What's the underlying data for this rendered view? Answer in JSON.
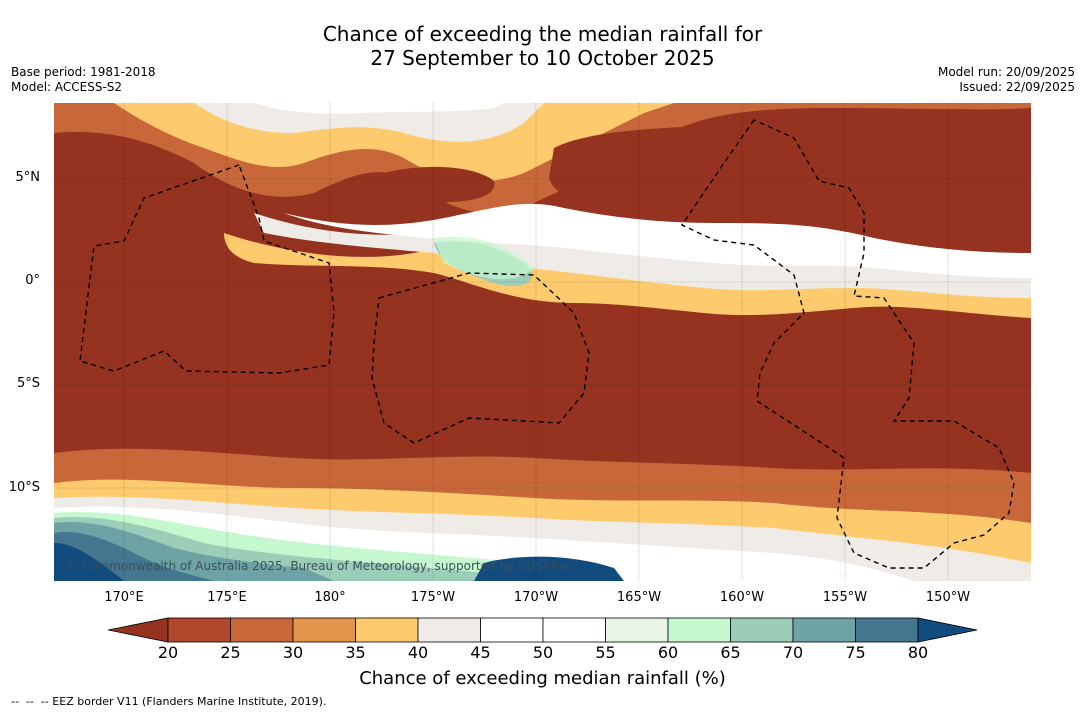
{
  "header": {
    "title_line1": "Chance of exceeding the median rainfall for",
    "title_line2": "27 September to 10 October 2025",
    "base_period": "Base period: 1981-2018",
    "model": "Model: ACCESS-S2",
    "model_run": "Model run: 20/09/2025",
    "issued": "Issued: 22/09/2025"
  },
  "map": {
    "lat_labels": [
      "5°N",
      "0°",
      "5°S",
      "10°S"
    ],
    "lon_labels": [
      "170°E",
      "175°E",
      "180°",
      "175°W",
      "170°W",
      "165°W",
      "160°W",
      "155°W",
      "150°W"
    ],
    "copyright": "© Commonwealth of Australia 2025, Bureau of Meteorology, supported by COSPPac"
  },
  "colorbar": {
    "title": "Chance of exceeding median rainfall (%)",
    "ticks": [
      "20",
      "25",
      "30",
      "35",
      "40",
      "45",
      "50",
      "55",
      "60",
      "65",
      "70",
      "75",
      "80"
    ],
    "colors": [
      "#953220",
      "#b0482b",
      "#c8683a",
      "#e2964c",
      "#fdcb6e",
      "#efebe6",
      "#ffffff",
      "#ffffff",
      "#e8f4e6",
      "#c6f8cf",
      "#9bcdb8",
      "#6ea3a6",
      "#44778f",
      "#124c7e"
    ]
  },
  "footer": {
    "legend": "--  --  -- EEZ border V11 (Flanders Marine Institute, 2019)."
  }
}
